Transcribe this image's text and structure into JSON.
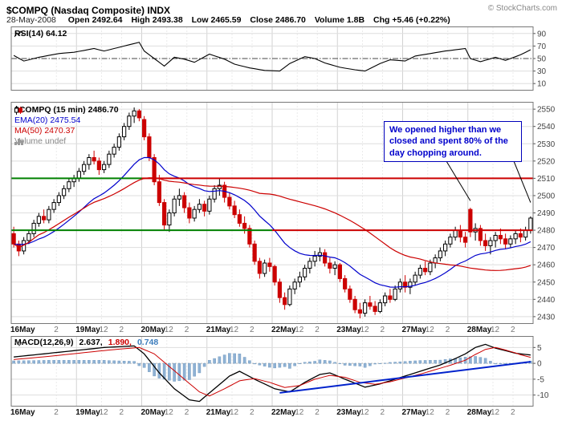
{
  "header": {
    "symbol_title": "$COMPQ (Nasdaq Composite) INDX",
    "copyright": "© StockCharts.com",
    "date": "28-May-2008",
    "quote": {
      "open_label": "Open",
      "open": "2492.64",
      "high_label": "High",
      "high": "2493.38",
      "low_label": "Low",
      "low": "2465.59",
      "close_label": "Close",
      "close": "2486.70",
      "volume_label": "Volume",
      "volume": "1.8B",
      "chg_label": "Chg",
      "chg": "+5.46 (+0.22%)"
    }
  },
  "rsi_panel": {
    "legend": "RSI(14) 64.12"
  },
  "main_panel": {
    "legend_symbol": "$COMPQ (15 min) 2486.70",
    "legend_ema": "EMA(20) 2475.54",
    "legend_ma": "MA(50) 2470.37",
    "legend_volume": "Volume undef"
  },
  "macd_panel": {
    "legend_label": "MACD(12,26,9)",
    "legend_macd": "2.637,",
    "legend_signal": "1.890,",
    "legend_hist": "0.748"
  },
  "annotation": {
    "text": "We opened higher than we closed and spent 80% of the day chopping around."
  },
  "colors": {
    "up_stroke": "#000000",
    "up_fill": "#ffffff",
    "down": "#cc0000",
    "ema": "#0000cc",
    "ma": "#cc0000",
    "rsi_line": "#000000",
    "macd_line": "#000000",
    "signal_line": "#cc0000",
    "hist_fill": "#8fb2d4",
    "hist_stroke": "#6f97bd",
    "trend": "#0022cc",
    "support_green": "#008000",
    "resistance_red": "#cc0000",
    "grid": "#dedede",
    "grid_day": "#d2d2d2",
    "grid_minor": "#ebebeb",
    "border": "#777777"
  },
  "chart_data": {
    "type": "candlestick",
    "symbol": "$COMPQ",
    "timeframe": "15 min",
    "days": [
      "16May",
      "19May",
      "20May",
      "21May",
      "22May",
      "23May",
      "27May",
      "28May"
    ],
    "candles_per_day": 13,
    "price_ticks": [
      2550,
      2540,
      2530,
      2520,
      2510,
      2500,
      2490,
      2480,
      2470,
      2460,
      2450,
      2440,
      2430
    ],
    "rsi_ticks": [
      90,
      70,
      50,
      30,
      10
    ],
    "macd_ticks": [
      5,
      0,
      -5,
      -10
    ],
    "x_labels": [
      {
        "i": 0,
        "t": "16May",
        "major": true
      },
      {
        "i": 9,
        "t": "2",
        "major": false
      },
      {
        "i": 13,
        "t": "19May",
        "major": true
      },
      {
        "i": 18,
        "t": "12",
        "major": false
      },
      {
        "i": 22,
        "t": "2",
        "major": false
      },
      {
        "i": 26,
        "t": "20May",
        "major": true
      },
      {
        "i": 31,
        "t": "12",
        "major": false
      },
      {
        "i": 35,
        "t": "2",
        "major": false
      },
      {
        "i": 39,
        "t": "21May",
        "major": true
      },
      {
        "i": 44,
        "t": "12",
        "major": false
      },
      {
        "i": 48,
        "t": "2",
        "major": false
      },
      {
        "i": 52,
        "t": "22May",
        "major": true
      },
      {
        "i": 57,
        "t": "12",
        "major": false
      },
      {
        "i": 61,
        "t": "2",
        "major": false
      },
      {
        "i": 65,
        "t": "23May",
        "major": true
      },
      {
        "i": 70,
        "t": "12",
        "major": false
      },
      {
        "i": 74,
        "t": "2",
        "major": false
      },
      {
        "i": 78,
        "t": "27May",
        "major": true
      },
      {
        "i": 83,
        "t": "12",
        "major": false
      },
      {
        "i": 87,
        "t": "2",
        "major": false
      },
      {
        "i": 91,
        "t": "28May",
        "major": true
      },
      {
        "i": 96,
        "t": "12",
        "major": false
      },
      {
        "i": 100,
        "t": "2",
        "major": false
      }
    ],
    "support_resistance": [
      {
        "price": 2510,
        "split_index": 26
      },
      {
        "price": 2480,
        "split_index": 52
      }
    ],
    "ohlc": [
      [
        2478,
        2482,
        2470,
        2472
      ],
      [
        2472,
        2474,
        2465,
        2468
      ],
      [
        2468,
        2476,
        2466,
        2474
      ],
      [
        2474,
        2480,
        2472,
        2478
      ],
      [
        2478,
        2486,
        2476,
        2484
      ],
      [
        2484,
        2490,
        2482,
        2488
      ],
      [
        2488,
        2492,
        2484,
        2486
      ],
      [
        2486,
        2494,
        2484,
        2492
      ],
      [
        2492,
        2498,
        2490,
        2496
      ],
      [
        2496,
        2502,
        2494,
        2500
      ],
      [
        2500,
        2506,
        2498,
        2504
      ],
      [
        2504,
        2510,
        2502,
        2508
      ],
      [
        2508,
        2512,
        2505,
        2510
      ],
      [
        2510,
        2516,
        2508,
        2514
      ],
      [
        2514,
        2520,
        2512,
        2518
      ],
      [
        2518,
        2524,
        2515,
        2522
      ],
      [
        2522,
        2526,
        2518,
        2520
      ],
      [
        2520,
        2522,
        2512,
        2515
      ],
      [
        2515,
        2520,
        2513,
        2518
      ],
      [
        2518,
        2526,
        2516,
        2524
      ],
      [
        2524,
        2530,
        2522,
        2528
      ],
      [
        2528,
        2536,
        2526,
        2534
      ],
      [
        2534,
        2542,
        2532,
        2540
      ],
      [
        2540,
        2548,
        2538,
        2546
      ],
      [
        2546,
        2551,
        2542,
        2549
      ],
      [
        2549,
        2550,
        2543,
        2545
      ],
      [
        2544,
        2546,
        2532,
        2534
      ],
      [
        2534,
        2536,
        2520,
        2522
      ],
      [
        2522,
        2524,
        2506,
        2508
      ],
      [
        2508,
        2512,
        2494,
        2496
      ],
      [
        2496,
        2498,
        2480,
        2483
      ],
      [
        2483,
        2492,
        2479,
        2490
      ],
      [
        2490,
        2500,
        2488,
        2498
      ],
      [
        2498,
        2504,
        2494,
        2500
      ],
      [
        2500,
        2502,
        2490,
        2493
      ],
      [
        2493,
        2496,
        2484,
        2487
      ],
      [
        2487,
        2494,
        2485,
        2492
      ],
      [
        2492,
        2498,
        2490,
        2495
      ],
      [
        2495,
        2497,
        2488,
        2491
      ],
      [
        2491,
        2500,
        2489,
        2498
      ],
      [
        2498,
        2506,
        2496,
        2504
      ],
      [
        2504,
        2510,
        2500,
        2506
      ],
      [
        2506,
        2508,
        2496,
        2499
      ],
      [
        2499,
        2502,
        2492,
        2494
      ],
      [
        2494,
        2497,
        2487,
        2489
      ],
      [
        2489,
        2492,
        2482,
        2484
      ],
      [
        2484,
        2488,
        2478,
        2481
      ],
      [
        2481,
        2483,
        2470,
        2472
      ],
      [
        2472,
        2474,
        2460,
        2462
      ],
      [
        2462,
        2464,
        2452,
        2455
      ],
      [
        2455,
        2463,
        2453,
        2461
      ],
      [
        2461,
        2464,
        2456,
        2459
      ],
      [
        2459,
        2460,
        2448,
        2450
      ],
      [
        2450,
        2452,
        2438,
        2441
      ],
      [
        2441,
        2444,
        2434,
        2437
      ],
      [
        2437,
        2448,
        2436,
        2446
      ],
      [
        2446,
        2452,
        2443,
        2450
      ],
      [
        2450,
        2456,
        2447,
        2453
      ],
      [
        2453,
        2460,
        2451,
        2458
      ],
      [
        2458,
        2464,
        2455,
        2462
      ],
      [
        2462,
        2468,
        2459,
        2465
      ],
      [
        2465,
        2470,
        2462,
        2467
      ],
      [
        2467,
        2469,
        2459,
        2461
      ],
      [
        2461,
        2464,
        2455,
        2458
      ],
      [
        2458,
        2462,
        2454,
        2460
      ],
      [
        2460,
        2461,
        2450,
        2452
      ],
      [
        2452,
        2454,
        2444,
        2446
      ],
      [
        2446,
        2448,
        2438,
        2440
      ],
      [
        2440,
        2442,
        2432,
        2434
      ],
      [
        2434,
        2438,
        2429,
        2432
      ],
      [
        2432,
        2440,
        2430,
        2438
      ],
      [
        2438,
        2442,
        2434,
        2436
      ],
      [
        2436,
        2439,
        2431,
        2433
      ],
      [
        2433,
        2440,
        2432,
        2438
      ],
      [
        2438,
        2444,
        2436,
        2442
      ],
      [
        2442,
        2446,
        2438,
        2440
      ],
      [
        2440,
        2448,
        2439,
        2446
      ],
      [
        2446,
        2452,
        2444,
        2450
      ],
      [
        2450,
        2454,
        2444,
        2447
      ],
      [
        2447,
        2452,
        2443,
        2450
      ],
      [
        2450,
        2456,
        2448,
        2454
      ],
      [
        2454,
        2460,
        2452,
        2458
      ],
      [
        2458,
        2462,
        2454,
        2456
      ],
      [
        2456,
        2463,
        2454,
        2461
      ],
      [
        2461,
        2466,
        2458,
        2464
      ],
      [
        2464,
        2470,
        2462,
        2468
      ],
      [
        2468,
        2474,
        2465,
        2472
      ],
      [
        2472,
        2478,
        2470,
        2476
      ],
      [
        2476,
        2482,
        2474,
        2480
      ],
      [
        2480,
        2483,
        2473,
        2476
      ],
      [
        2476,
        2479,
        2470,
        2473
      ],
      [
        2492,
        2493,
        2476,
        2479
      ],
      [
        2479,
        2484,
        2474,
        2481
      ],
      [
        2481,
        2483,
        2471,
        2474
      ],
      [
        2474,
        2478,
        2468,
        2471
      ],
      [
        2471,
        2476,
        2466,
        2474
      ],
      [
        2474,
        2479,
        2470,
        2477
      ],
      [
        2477,
        2481,
        2472,
        2475
      ],
      [
        2475,
        2478,
        2469,
        2472
      ],
      [
        2472,
        2477,
        2470,
        2475
      ],
      [
        2475,
        2480,
        2472,
        2478
      ],
      [
        2478,
        2481,
        2473,
        2476
      ],
      [
        2476,
        2482,
        2474,
        2480
      ],
      [
        2480,
        2488,
        2478,
        2487
      ]
    ],
    "ema_period": 20,
    "ma_period": 50,
    "rsi": {
      "period": 14,
      "last": 64.12,
      "waypoints": [
        [
          0,
          55
        ],
        [
          2,
          46
        ],
        [
          5,
          52
        ],
        [
          9,
          58
        ],
        [
          12,
          60
        ],
        [
          16,
          66
        ],
        [
          18,
          62
        ],
        [
          21,
          68
        ],
        [
          24,
          74
        ],
        [
          25,
          76
        ],
        [
          26,
          62
        ],
        [
          28,
          50
        ],
        [
          30,
          38
        ],
        [
          32,
          52
        ],
        [
          34,
          49
        ],
        [
          36,
          44
        ],
        [
          39,
          57
        ],
        [
          42,
          49
        ],
        [
          44,
          41
        ],
        [
          47,
          35
        ],
        [
          50,
          31
        ],
        [
          53,
          30
        ],
        [
          55,
          42
        ],
        [
          58,
          53
        ],
        [
          60,
          50
        ],
        [
          62,
          43
        ],
        [
          65,
          36
        ],
        [
          68,
          32
        ],
        [
          70,
          30
        ],
        [
          73,
          42
        ],
        [
          75,
          48
        ],
        [
          78,
          46
        ],
        [
          80,
          54
        ],
        [
          83,
          58
        ],
        [
          86,
          62
        ],
        [
          88,
          64
        ],
        [
          90,
          66
        ],
        [
          91,
          50
        ],
        [
          93,
          45
        ],
        [
          96,
          52
        ],
        [
          98,
          47
        ],
        [
          101,
          56
        ],
        [
          103,
          64.12
        ]
      ]
    },
    "macd": {
      "params": "12,26,9",
      "last_macd": 2.637,
      "last_signal": 1.89,
      "last_hist": 0.748,
      "waypoints": [
        [
          0,
          2
        ],
        [
          6,
          3
        ],
        [
          12,
          4
        ],
        [
          18,
          5
        ],
        [
          24,
          5.5
        ],
        [
          26,
          3
        ],
        [
          29,
          -3
        ],
        [
          32,
          -8
        ],
        [
          35,
          -11.5
        ],
        [
          37,
          -12
        ],
        [
          40,
          -8
        ],
        [
          43,
          -4
        ],
        [
          45,
          -2.5
        ],
        [
          48,
          -5
        ],
        [
          52,
          -8
        ],
        [
          55,
          -9
        ],
        [
          58,
          -6
        ],
        [
          61,
          -3.5
        ],
        [
          63,
          -3
        ],
        [
          66,
          -5
        ],
        [
          70,
          -7.5
        ],
        [
          73,
          -6.5
        ],
        [
          76,
          -5
        ],
        [
          79,
          -3.5
        ],
        [
          82,
          -2
        ],
        [
          85,
          -0.5
        ],
        [
          88,
          1.5
        ],
        [
          90,
          3
        ],
        [
          92,
          5
        ],
        [
          94,
          6
        ],
        [
          96,
          4.8
        ],
        [
          98,
          4
        ],
        [
          100,
          3.2
        ],
        [
          102,
          2.8
        ],
        [
          103,
          2.637
        ]
      ],
      "signal_waypoints": [
        [
          0,
          1.2
        ],
        [
          7,
          2.2
        ],
        [
          13,
          3.2
        ],
        [
          19,
          4.2
        ],
        [
          25,
          5
        ],
        [
          28,
          3
        ],
        [
          31,
          -1
        ],
        [
          34,
          -5
        ],
        [
          37,
          -9
        ],
        [
          39,
          -10.3
        ],
        [
          42,
          -8
        ],
        [
          45,
          -5.5
        ],
        [
          48,
          -4.8
        ],
        [
          51,
          -6
        ],
        [
          54,
          -7.6
        ],
        [
          57,
          -7
        ],
        [
          60,
          -5
        ],
        [
          63,
          -3.8
        ],
        [
          66,
          -4.4
        ],
        [
          69,
          -6
        ],
        [
          72,
          -6.6
        ],
        [
          75,
          -5.8
        ],
        [
          78,
          -4.6
        ],
        [
          81,
          -3.4
        ],
        [
          84,
          -2
        ],
        [
          87,
          -0.6
        ],
        [
          90,
          1
        ],
        [
          92,
          2.8
        ],
        [
          94,
          4.4
        ],
        [
          96,
          5
        ],
        [
          98,
          4.2
        ],
        [
          100,
          3.3
        ],
        [
          101,
          2.7
        ],
        [
          103,
          1.89
        ]
      ],
      "trendline": {
        "from": [
          53,
          -9.3
        ],
        "to": [
          103,
          0.5
        ]
      }
    },
    "annotation_targets": [
      {
        "index": 91,
        "price": 2497
      },
      {
        "index": 103,
        "price": 2496
      }
    ]
  }
}
